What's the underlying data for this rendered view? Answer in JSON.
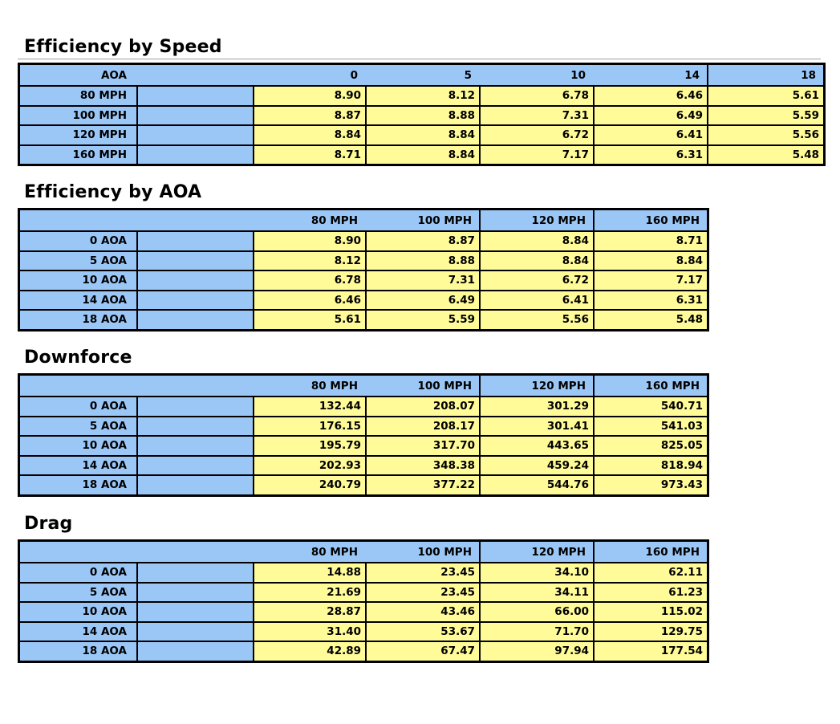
{
  "colors": {
    "header_bg": "#9BC7F7",
    "value_bg": "#FFFB99",
    "border": "#000000",
    "title": "#000000",
    "title_rule": "#9E9E9E"
  },
  "tables": [
    {
      "title": "Efficiency by Speed",
      "header_cells": [
        "AOA",
        "",
        "0",
        "5",
        "10",
        "14",
        "18"
      ],
      "rows": [
        {
          "label": "80 MPH",
          "values": [
            "8.90",
            "8.12",
            "6.78",
            "6.46",
            "5.61"
          ]
        },
        {
          "label": "100 MPH",
          "values": [
            "8.87",
            "8.88",
            "7.31",
            "6.49",
            "5.59"
          ]
        },
        {
          "label": "120 MPH",
          "values": [
            "8.84",
            "8.84",
            "6.72",
            "6.41",
            "5.56"
          ]
        },
        {
          "label": "160 MPH",
          "values": [
            "8.71",
            "8.84",
            "7.17",
            "6.31",
            "5.48"
          ]
        }
      ]
    },
    {
      "title": "Efficiency by AOA",
      "header_cells": [
        "",
        "",
        "80 MPH",
        "100 MPH",
        "120 MPH",
        "160 MPH"
      ],
      "rows": [
        {
          "label": "0 AOA",
          "values": [
            "8.90",
            "8.87",
            "8.84",
            "8.71"
          ]
        },
        {
          "label": "5 AOA",
          "values": [
            "8.12",
            "8.88",
            "8.84",
            "8.84"
          ]
        },
        {
          "label": "10 AOA",
          "values": [
            "6.78",
            "7.31",
            "6.72",
            "7.17"
          ]
        },
        {
          "label": "14 AOA",
          "values": [
            "6.46",
            "6.49",
            "6.41",
            "6.31"
          ]
        },
        {
          "label": "18 AOA",
          "values": [
            "5.61",
            "5.59",
            "5.56",
            "5.48"
          ]
        }
      ]
    },
    {
      "title": "Downforce",
      "header_cells": [
        "",
        "",
        "80 MPH",
        "100 MPH",
        "120 MPH",
        "160 MPH"
      ],
      "rows": [
        {
          "label": "0 AOA",
          "values": [
            "132.44",
            "208.07",
            "301.29",
            "540.71"
          ]
        },
        {
          "label": "5 AOA",
          "values": [
            "176.15",
            "208.17",
            "301.41",
            "541.03"
          ]
        },
        {
          "label": "10 AOA",
          "values": [
            "195.79",
            "317.70",
            "443.65",
            "825.05"
          ]
        },
        {
          "label": "14 AOA",
          "values": [
            "202.93",
            "348.38",
            "459.24",
            "818.94"
          ]
        },
        {
          "label": "18 AOA",
          "values": [
            "240.79",
            "377.22",
            "544.76",
            "973.43"
          ]
        }
      ]
    },
    {
      "title": "Drag",
      "header_cells": [
        "",
        "",
        "80 MPH",
        "100 MPH",
        "120 MPH",
        "160 MPH"
      ],
      "rows": [
        {
          "label": "0 AOA",
          "values": [
            "14.88",
            "23.45",
            "34.10",
            "62.11"
          ]
        },
        {
          "label": "5 AOA",
          "values": [
            "21.69",
            "23.45",
            "34.11",
            "61.23"
          ]
        },
        {
          "label": "10 AOA",
          "values": [
            "28.87",
            "43.46",
            "66.00",
            "115.02"
          ]
        },
        {
          "label": "14 AOA",
          "values": [
            "31.40",
            "53.67",
            "71.70",
            "129.75"
          ]
        },
        {
          "label": "18 AOA",
          "values": [
            "42.89",
            "67.47",
            "97.94",
            "177.54"
          ]
        }
      ]
    }
  ]
}
